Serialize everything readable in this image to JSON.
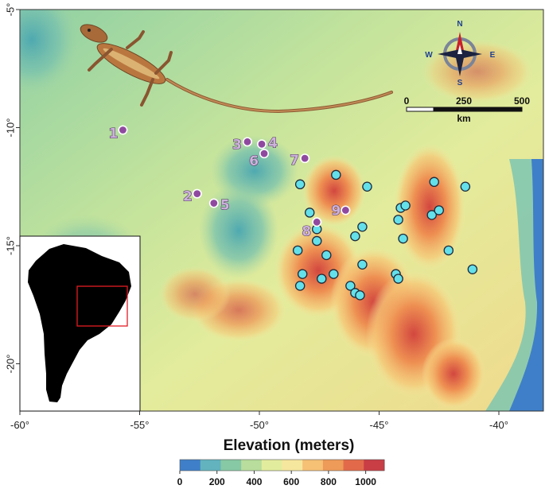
{
  "map": {
    "lon_range": [
      -60,
      -38
    ],
    "lat_range": [
      -22,
      -5
    ],
    "x_ticks": [
      "-60°",
      "-55°",
      "-50°",
      "-45°",
      "-40°"
    ],
    "y_ticks": [
      "-5°",
      "-10°",
      "-15°",
      "-20°"
    ]
  },
  "purple_sites": [
    {
      "label": "1",
      "lon": -55.7,
      "lat": -10.1
    },
    {
      "label": "2",
      "lon": -52.6,
      "lat": -12.8
    },
    {
      "label": "3",
      "lon": -50.5,
      "lat": -10.6
    },
    {
      "label": "4",
      "lon": -49.9,
      "lat": -10.7
    },
    {
      "label": "5",
      "lon": -51.9,
      "lat": -13.2
    },
    {
      "label": "6",
      "lon": -49.8,
      "lat": -11.1
    },
    {
      "label": "7",
      "lon": -48.1,
      "lat": -11.3
    },
    {
      "label": "8",
      "lon": -47.6,
      "lat": -14.0
    },
    {
      "label": "9",
      "lon": -46.4,
      "lat": -13.5
    }
  ],
  "cyan_sites": [
    {
      "lon": -48.3,
      "lat": -12.4
    },
    {
      "lon": -46.8,
      "lat": -12.0
    },
    {
      "lon": -45.5,
      "lat": -12.5
    },
    {
      "lon": -47.9,
      "lat": -13.6
    },
    {
      "lon": -47.6,
      "lat": -14.3
    },
    {
      "lon": -47.6,
      "lat": -14.8
    },
    {
      "lon": -48.4,
      "lat": -15.2
    },
    {
      "lon": -47.2,
      "lat": -15.4
    },
    {
      "lon": -46.0,
      "lat": -14.6
    },
    {
      "lon": -45.7,
      "lat": -14.2
    },
    {
      "lon": -45.7,
      "lat": -15.8
    },
    {
      "lon": -48.2,
      "lat": -16.2
    },
    {
      "lon": -48.3,
      "lat": -16.7
    },
    {
      "lon": -47.4,
      "lat": -16.4
    },
    {
      "lon": -46.9,
      "lat": -16.2
    },
    {
      "lon": -46.2,
      "lat": -16.7
    },
    {
      "lon": -46.0,
      "lat": -17.0
    },
    {
      "lon": -45.8,
      "lat": -17.1
    },
    {
      "lon": -44.3,
      "lat": -16.2
    },
    {
      "lon": -44.2,
      "lat": -16.4
    },
    {
      "lon": -44.0,
      "lat": -14.7
    },
    {
      "lon": -44.2,
      "lat": -13.9
    },
    {
      "lon": -44.1,
      "lat": -13.4
    },
    {
      "lon": -43.9,
      "lat": -13.3
    },
    {
      "lon": -42.8,
      "lat": -13.7
    },
    {
      "lon": -42.5,
      "lat": -13.5
    },
    {
      "lon": -42.7,
      "lat": -12.3
    },
    {
      "lon": -41.4,
      "lat": -12.5
    },
    {
      "lon": -42.1,
      "lat": -15.2
    },
    {
      "lon": -41.1,
      "lat": -16.0
    }
  ],
  "compass": {
    "n": "N",
    "s": "S",
    "e": "E",
    "w": "W"
  },
  "scale_bar": {
    "labels": [
      "0",
      "250",
      "500"
    ],
    "unit": "km"
  },
  "legend": {
    "title": "Elevation (meters)",
    "labels": [
      "0",
      "200",
      "400",
      "600",
      "800",
      "1000"
    ],
    "colors": [
      "#3f7fc9",
      "#62b3be",
      "#86c9a4",
      "#b8dd9c",
      "#e2ec9d",
      "#f6e79e",
      "#f6c075",
      "#ee9a58",
      "#e26a4a",
      "#c93d45"
    ]
  },
  "colors": {
    "purple_fill": "#8f4aa0",
    "cyan_fill": "#63e0ea"
  }
}
